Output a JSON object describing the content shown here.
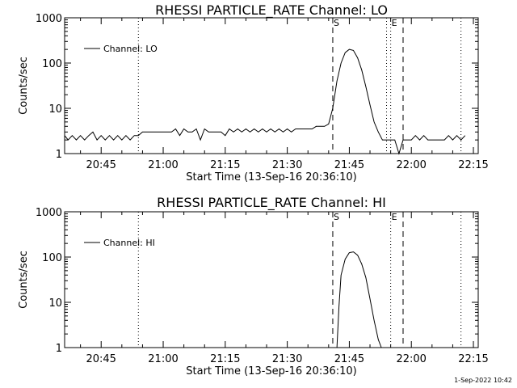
{
  "timestamp": "1-Sep-2022 10:42",
  "chart_data": [
    {
      "type": "line",
      "title": "RHESSI PARTICLE_RATE Channel: LO",
      "xlabel": "Start Time (13-Sep-16 20:36:10)",
      "ylabel": "Counts/sec",
      "yscale": "log",
      "ylim": [
        1,
        1000
      ],
      "xlim": [
        "20:36:10",
        "22:16:10"
      ],
      "x_ticks": [
        "20:45",
        "21:00",
        "21:15",
        "21:30",
        "21:45",
        "22:00",
        "22:15"
      ],
      "y_ticks": [
        "1",
        "10",
        "100",
        "1000"
      ],
      "legend": {
        "position": "top-left",
        "label": "Channel: LO"
      },
      "markers": [
        {
          "label": "S",
          "time": "21:41",
          "style": "dashed"
        },
        {
          "label": "E",
          "time": "21:55",
          "style": "dotted"
        }
      ],
      "extra_lines": [
        {
          "time": "21:54",
          "style": "dotted"
        },
        {
          "time": "21:58",
          "style": "dashed"
        },
        {
          "time": "20:54",
          "style": "dotted"
        },
        {
          "time": "22:12",
          "style": "dotted"
        }
      ],
      "series": [
        {
          "name": "Channel: LO",
          "x": [
            "20:36:10",
            "20:37",
            "20:38",
            "20:39",
            "20:40",
            "20:41",
            "20:42",
            "20:43",
            "20:44",
            "20:45",
            "20:46",
            "20:47",
            "20:48",
            "20:49",
            "20:50",
            "20:51",
            "20:52",
            "20:53",
            "20:54",
            "20:55",
            "20:57",
            "20:59",
            "21:00",
            "21:01",
            "21:02",
            "21:03",
            "21:04",
            "21:05",
            "21:06",
            "21:07",
            "21:08",
            "21:09",
            "21:10",
            "21:11",
            "21:12",
            "21:13",
            "21:14",
            "21:15",
            "21:16",
            "21:17",
            "21:18",
            "21:19",
            "21:20",
            "21:21",
            "21:22",
            "21:23",
            "21:24",
            "21:25",
            "21:26",
            "21:27",
            "21:28",
            "21:29",
            "21:30",
            "21:31",
            "21:32",
            "21:33",
            "21:34",
            "21:35",
            "21:36",
            "21:37",
            "21:38",
            "21:39",
            "21:40",
            "21:41",
            "21:42",
            "21:43",
            "21:44",
            "21:45",
            "21:46",
            "21:47",
            "21:48",
            "21:49",
            "21:50",
            "21:51",
            "21:52",
            "21:53",
            "21:54",
            "21:55",
            "21:56",
            "21:57",
            "21:58",
            "21:59",
            "22:00",
            "22:01",
            "22:02",
            "22:03",
            "22:04",
            "22:05",
            "22:06",
            "22:07",
            "22:08",
            "22:09",
            "22:10",
            "22:11",
            "22:12",
            "22:13"
          ],
          "y": [
            2.5,
            2,
            2.5,
            2,
            2.5,
            2,
            2.5,
            3,
            2,
            2.5,
            2,
            2.5,
            2,
            2.5,
            2,
            2.5,
            2,
            2.5,
            2.5,
            3,
            3,
            3,
            3,
            3,
            3,
            3.5,
            2.5,
            3.5,
            3,
            3,
            3.5,
            2,
            3.5,
            3,
            3,
            3,
            3,
            2.5,
            3.5,
            3,
            3.5,
            3,
            3.5,
            3,
            3.5,
            3,
            3.5,
            3,
            3.5,
            3,
            3.5,
            3,
            3.5,
            3,
            3.5,
            3.5,
            3.5,
            3.5,
            3.5,
            4,
            4,
            4,
            4.5,
            10,
            40,
            100,
            170,
            200,
            190,
            130,
            70,
            30,
            12,
            5,
            3,
            2,
            2,
            2,
            2,
            1,
            2,
            2,
            2,
            2.5,
            2,
            2.5,
            2,
            2,
            2,
            2,
            2,
            2.5,
            2,
            2.5,
            2,
            2.5
          ]
        }
      ]
    },
    {
      "type": "line",
      "title": "RHESSI PARTICLE_RATE Channel: HI",
      "xlabel": "Start Time (13-Sep-16 20:36:10)",
      "ylabel": "Counts/sec",
      "yscale": "log",
      "ylim": [
        1,
        1000
      ],
      "xlim": [
        "20:36:10",
        "22:16:10"
      ],
      "x_ticks": [
        "20:45",
        "21:00",
        "21:15",
        "21:30",
        "21:45",
        "22:00",
        "22:15"
      ],
      "y_ticks": [
        "1",
        "10",
        "100",
        "1000"
      ],
      "legend": {
        "position": "top-left",
        "label": "Channel: HI"
      },
      "markers": [
        {
          "label": "S",
          "time": "21:41",
          "style": "dashed"
        },
        {
          "label": "E",
          "time": "21:55",
          "style": "dotted"
        }
      ],
      "extra_lines": [
        {
          "time": "21:58",
          "style": "dashed"
        },
        {
          "time": "20:54",
          "style": "dotted"
        },
        {
          "time": "22:12",
          "style": "dotted"
        }
      ],
      "series": [
        {
          "name": "Channel: HI",
          "x": [
            "21:42",
            "21:42:30",
            "21:43",
            "21:44",
            "21:45",
            "21:46",
            "21:47",
            "21:48",
            "21:49",
            "21:50",
            "21:51",
            "21:52",
            "21:52:45"
          ],
          "y": [
            1,
            8,
            40,
            90,
            125,
            130,
            110,
            70,
            35,
            12,
            4,
            1.5,
            1
          ]
        }
      ]
    }
  ]
}
